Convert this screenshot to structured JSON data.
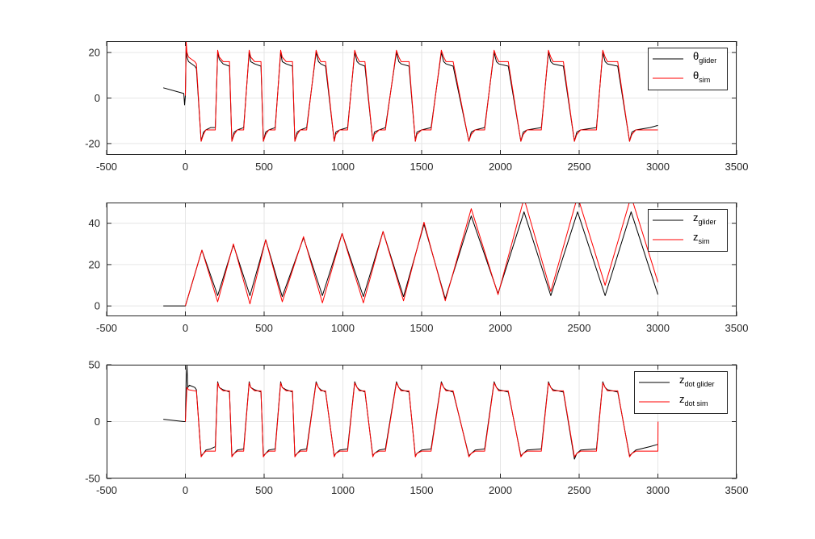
{
  "chart_data": [
    {
      "type": "line",
      "xlim": [
        -500,
        3500
      ],
      "ylim": [
        -25,
        25
      ],
      "x_ticks": [
        -500,
        0,
        500,
        1000,
        1500,
        2000,
        2500,
        3000,
        3500
      ],
      "y_ticks": [
        -20,
        0,
        20
      ],
      "x_tick_labels": [
        "-500",
        "0",
        "500",
        "1000",
        "1500",
        "2000",
        "2500",
        "3000",
        "3500"
      ],
      "y_tick_labels": [
        "-20",
        "0",
        "20"
      ],
      "grid": true,
      "legend_position": "top-right",
      "series": [
        {
          "name_main": "θ",
          "name_sub": "glider",
          "color": "#000000",
          "x": [
            -140,
            -10,
            -5,
            0,
            5,
            10,
            20,
            60,
            70,
            100,
            115,
            130,
            160,
            190,
            205,
            215,
            240,
            280,
            295,
            310,
            330,
            370,
            405,
            415,
            440,
            480,
            495,
            510,
            530,
            570,
            605,
            615,
            640,
            680,
            695,
            710,
            730,
            770,
            830,
            845,
            860,
            890,
            945,
            955,
            980,
            1030,
            1075,
            1090,
            1105,
            1140,
            1190,
            1200,
            1230,
            1270,
            1340,
            1355,
            1370,
            1420,
            1460,
            1470,
            1500,
            1560,
            1625,
            1640,
            1655,
            1700,
            1800,
            1815,
            1840,
            1900,
            1960,
            1975,
            1990,
            2050,
            2130,
            2145,
            2170,
            2260,
            2305,
            2320,
            2335,
            2400,
            2470,
            2485,
            2510,
            2610,
            2650,
            2665,
            2680,
            2745,
            2820,
            2835,
            2860,
            2950,
            3000
          ],
          "y": [
            4.5,
            2,
            -3,
            1,
            22,
            18,
            16,
            14,
            13,
            -19,
            -15,
            -14,
            -13,
            -13,
            20,
            17,
            15,
            14,
            -19,
            -15,
            -14,
            -13,
            20,
            16,
            15,
            14,
            -19,
            -15,
            -14,
            -13,
            20,
            16,
            15,
            14,
            -19,
            -15,
            -14,
            -13,
            20,
            16,
            15,
            14,
            -19,
            -15,
            -14,
            -13,
            20,
            16,
            15,
            14,
            -19,
            -15,
            -14,
            -13,
            20,
            16,
            15,
            14,
            -19,
            -15,
            -14,
            -13,
            20,
            16,
            15,
            14,
            -19,
            -15,
            -14,
            -13,
            20,
            16,
            15,
            14,
            -19,
            -15,
            -14,
            -13,
            20,
            16,
            15,
            14,
            -19,
            -15,
            -14,
            -13,
            20,
            16,
            15,
            14,
            -19,
            -15,
            -14,
            -13,
            -12
          ]
        },
        {
          "name_main": "θ",
          "name_sub": "sim",
          "color": "#ff0000",
          "x": [
            0,
            5,
            10,
            20,
            60,
            70,
            100,
            115,
            130,
            160,
            190,
            205,
            215,
            240,
            280,
            295,
            310,
            330,
            370,
            405,
            415,
            440,
            480,
            495,
            510,
            530,
            570,
            605,
            615,
            640,
            680,
            695,
            710,
            730,
            770,
            830,
            845,
            860,
            890,
            945,
            955,
            980,
            1030,
            1075,
            1090,
            1105,
            1140,
            1190,
            1200,
            1230,
            1270,
            1340,
            1355,
            1370,
            1420,
            1460,
            1470,
            1500,
            1560,
            1625,
            1640,
            1655,
            1700,
            1800,
            1815,
            1840,
            1900,
            1960,
            1975,
            1990,
            2050,
            2130,
            2145,
            2170,
            2260,
            2305,
            2320,
            2335,
            2400,
            2470,
            2485,
            2510,
            2610,
            2650,
            2665,
            2680,
            2745,
            2820,
            2835,
            2860,
            2950,
            3000
          ],
          "y": [
            1,
            25,
            20,
            18,
            16,
            15,
            -19,
            -16,
            -14,
            -14,
            -14,
            21,
            18,
            16,
            16,
            -19,
            -16,
            -14,
            -14,
            21,
            18,
            16,
            16,
            -19,
            -16,
            -14,
            -14,
            21,
            18,
            16,
            16,
            -19,
            -16,
            -14,
            -14,
            21,
            18,
            16,
            16,
            -19,
            -16,
            -14,
            -14,
            21,
            18,
            16,
            16,
            -19,
            -16,
            -14,
            -14,
            21,
            18,
            16,
            16,
            -19,
            -16,
            -14,
            -14,
            21,
            18,
            16,
            16,
            -19,
            -16,
            -14,
            -14,
            21,
            18,
            16,
            16,
            -19,
            -16,
            -14,
            -14,
            21,
            18,
            16,
            16,
            -19,
            -16,
            -14,
            -14,
            21,
            18,
            16,
            16,
            -19,
            -16,
            -14,
            -14,
            -14
          ]
        }
      ]
    },
    {
      "type": "line",
      "xlim": [
        -500,
        3500
      ],
      "ylim": [
        -5,
        50
      ],
      "x_ticks": [
        -500,
        0,
        500,
        1000,
        1500,
        2000,
        2500,
        3000,
        3500
      ],
      "y_ticks": [
        0,
        20,
        40
      ],
      "x_tick_labels": [
        "-500",
        "0",
        "500",
        "1000",
        "1500",
        "2000",
        "2500",
        "3000",
        "3500"
      ],
      "y_tick_labels": [
        "0",
        "20",
        "40"
      ],
      "grid": true,
      "legend_position": "top-right",
      "series": [
        {
          "name_main": "z",
          "name_sub": "glider",
          "color": "#000000",
          "x": [
            -140,
            0,
            105,
            205,
            305,
            410,
            510,
            615,
            750,
            870,
            995,
            1130,
            1255,
            1385,
            1515,
            1650,
            1815,
            1985,
            2150,
            2320,
            2490,
            2665,
            2830,
            3000
          ],
          "y": [
            0,
            0,
            27,
            5,
            29.5,
            5,
            32,
            4.5,
            33,
            5,
            35,
            4.5,
            36,
            4.5,
            39.5,
            3.5,
            43.5,
            6,
            45.5,
            5,
            45.5,
            5,
            45.5,
            5.5
          ],
          "curve": "smooth"
        },
        {
          "name_main": "z",
          "name_sub": "sim",
          "color": "#ff0000",
          "x": [
            0,
            105,
            205,
            305,
            410,
            510,
            615,
            750,
            870,
            995,
            1130,
            1255,
            1385,
            1515,
            1650,
            1815,
            1985,
            2150,
            2320,
            2490,
            2665,
            2830,
            3000
          ],
          "y": [
            0,
            27,
            2,
            30,
            1,
            32,
            2,
            33.5,
            1.5,
            35,
            1.5,
            36,
            2.5,
            40.5,
            2.5,
            47,
            5.5,
            52,
            7,
            53,
            10,
            53,
            11.5
          ],
          "curve": "smooth"
        }
      ]
    },
    {
      "type": "line",
      "xlim": [
        -500,
        3500
      ],
      "ylim": [
        -50,
        50
      ],
      "x_ticks": [
        -500,
        0,
        500,
        1000,
        1500,
        2000,
        2500,
        3000,
        3500
      ],
      "y_ticks": [
        -50,
        0,
        50
      ],
      "x_tick_labels": [
        "-500",
        "0",
        "500",
        "1000",
        "1500",
        "2000",
        "2500",
        "3000",
        "3500"
      ],
      "y_tick_labels": [
        "-50",
        "0",
        "50"
      ],
      "grid": true,
      "legend_position": "top-right",
      "series": [
        {
          "name_main": "z",
          "name_sub": "dot glider",
          "color": "#000000",
          "x": [
            -140,
            -10,
            0,
            5,
            10,
            15,
            25,
            60,
            70,
            100,
            115,
            130,
            160,
            190,
            205,
            215,
            240,
            280,
            295,
            310,
            330,
            370,
            405,
            415,
            440,
            480,
            495,
            510,
            530,
            570,
            605,
            615,
            640,
            680,
            695,
            710,
            730,
            770,
            830,
            845,
            860,
            890,
            945,
            955,
            980,
            1030,
            1075,
            1090,
            1105,
            1140,
            1190,
            1200,
            1230,
            1270,
            1340,
            1355,
            1370,
            1420,
            1460,
            1470,
            1500,
            1560,
            1625,
            1640,
            1655,
            1700,
            1800,
            1815,
            1840,
            1900,
            1960,
            1975,
            1990,
            2050,
            2130,
            2145,
            2170,
            2260,
            2305,
            2320,
            2335,
            2400,
            2470,
            2485,
            2510,
            2610,
            2650,
            2665,
            2680,
            2745,
            2820,
            2835,
            2860,
            2950,
            3000
          ],
          "y": [
            2,
            0,
            0,
            35,
            50,
            30,
            32,
            30,
            28,
            -30,
            -28,
            -25,
            -24,
            -22,
            35,
            30,
            28,
            26,
            -30,
            -28,
            -25,
            -24,
            35,
            30,
            28,
            26,
            -30,
            -28,
            -25,
            -24,
            35,
            30,
            28,
            26,
            -30,
            -28,
            -25,
            -24,
            35,
            30,
            28,
            26,
            -30,
            -28,
            -25,
            -24,
            35,
            30,
            28,
            26,
            -30,
            -28,
            -25,
            -24,
            35,
            30,
            28,
            26,
            -30,
            -28,
            -25,
            -24,
            35,
            30,
            28,
            26,
            -30,
            -28,
            -25,
            -24,
            35,
            30,
            28,
            26,
            -30,
            -28,
            -25,
            -24,
            35,
            30,
            28,
            26,
            -33,
            -28,
            -25,
            -24,
            35,
            30,
            28,
            26,
            -30,
            -28,
            -25,
            -22,
            -20
          ]
        },
        {
          "name_main": "z",
          "name_sub": "dot sim",
          "color": "#ff0000",
          "x": [
            0,
            10,
            20,
            60,
            70,
            100,
            115,
            130,
            160,
            190,
            205,
            215,
            240,
            280,
            295,
            310,
            330,
            370,
            405,
            415,
            440,
            480,
            495,
            510,
            530,
            570,
            605,
            615,
            640,
            680,
            695,
            710,
            730,
            770,
            830,
            845,
            860,
            890,
            945,
            955,
            980,
            1030,
            1075,
            1090,
            1105,
            1140,
            1190,
            1200,
            1230,
            1270,
            1340,
            1355,
            1370,
            1420,
            1460,
            1470,
            1500,
            1560,
            1625,
            1640,
            1655,
            1700,
            1800,
            1815,
            1840,
            1900,
            1960,
            1975,
            1990,
            2050,
            2130,
            2145,
            2170,
            2260,
            2305,
            2320,
            2335,
            2400,
            2470,
            2485,
            2510,
            2610,
            2650,
            2665,
            2680,
            2745,
            2820,
            2835,
            2860,
            2950,
            3000,
            3001
          ],
          "y": [
            0,
            30,
            28,
            27,
            27,
            -31,
            -28,
            -26,
            -26,
            -26,
            34,
            30,
            27,
            27,
            -31,
            -28,
            -26,
            -26,
            34,
            30,
            27,
            27,
            -31,
            -28,
            -26,
            -26,
            34,
            30,
            27,
            27,
            -31,
            -28,
            -26,
            -26,
            34,
            30,
            27,
            27,
            -31,
            -28,
            -26,
            -26,
            34,
            30,
            27,
            27,
            -31,
            -28,
            -26,
            -26,
            34,
            30,
            27,
            27,
            -31,
            -28,
            -26,
            -26,
            34,
            30,
            27,
            27,
            -31,
            -28,
            -26,
            -26,
            34,
            30,
            27,
            27,
            -31,
            -28,
            -26,
            -26,
            34,
            30,
            27,
            27,
            -31,
            -28,
            -26,
            -26,
            34,
            30,
            27,
            27,
            -31,
            -28,
            -26,
            -26,
            -26,
            0
          ]
        }
      ]
    }
  ]
}
